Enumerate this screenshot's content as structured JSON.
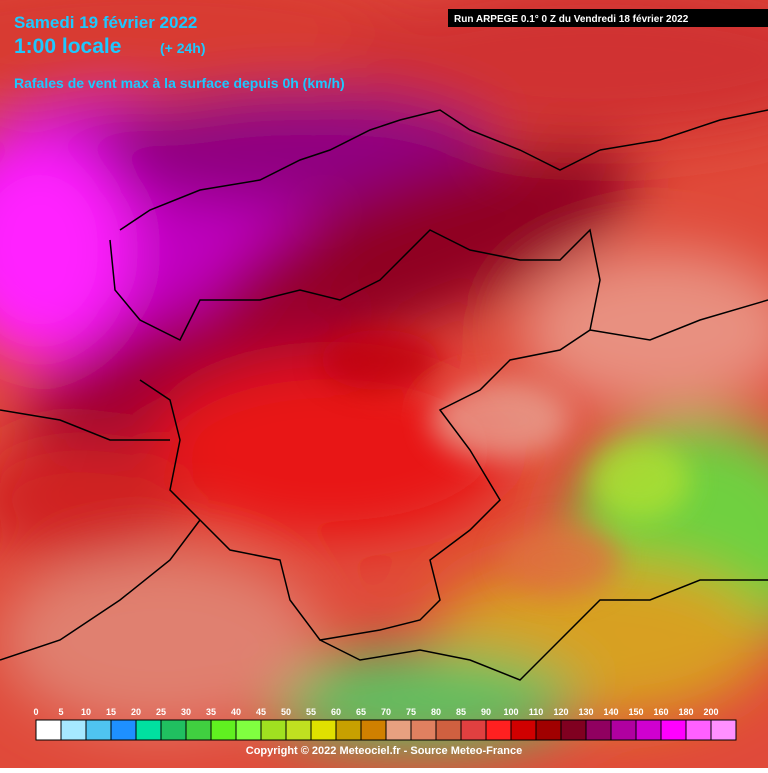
{
  "header": {
    "date": "Samedi 19 février 2022",
    "time": "1:00 locale",
    "offset": "(+ 24h)",
    "subtitle": "Rafales de vent max à la surface depuis 0h (km/h)",
    "run": "Run ARPEGE 0.1° 0 Z du Vendredi 18 février 2022"
  },
  "legend": {
    "labels": [
      0,
      5,
      10,
      15,
      20,
      25,
      30,
      35,
      40,
      45,
      50,
      55,
      60,
      65,
      70,
      75,
      80,
      85,
      90,
      100,
      110,
      120,
      130,
      140,
      150,
      160,
      180,
      200
    ],
    "colors": [
      "#ffffff",
      "#a6e9ff",
      "#4fc4f0",
      "#1e90ff",
      "#00e0a0",
      "#20c060",
      "#40d040",
      "#60f020",
      "#80ff40",
      "#a0e020",
      "#c0e020",
      "#e0e000",
      "#c8a000",
      "#d08000",
      "#e8a080",
      "#e08060",
      "#d06040",
      "#e04040",
      "#ff2020",
      "#d00000",
      "#a00000",
      "#800020",
      "#900060",
      "#b000a0",
      "#d000d0",
      "#ff00ff",
      "#ff60ff",
      "#ff90ff"
    ]
  },
  "footer": {
    "copyright": "Copyright © 2022 Meteociel.fr - Source Meteo-France"
  }
}
